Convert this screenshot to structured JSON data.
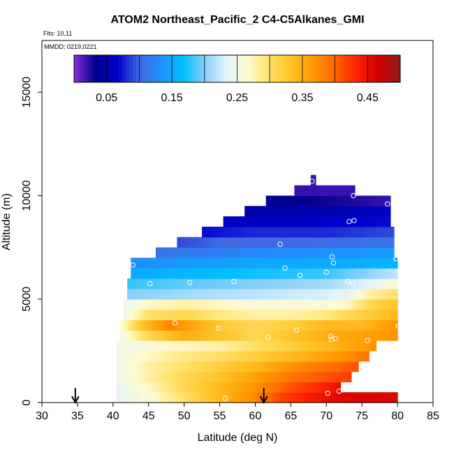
{
  "chart_data": {
    "type": "heatmap",
    "title": "ATOM2 Northeast_Pacific_2 C4-C5Alkanes_GMI",
    "flights_label": "Flts: 10,11",
    "dates_label": "MMDD: 0219,0221",
    "xlabel": "Latitude (deg N)",
    "ylabel": "Altitude (m)",
    "xlim": [
      30,
      85
    ],
    "ylim": [
      0,
      17500
    ],
    "x_ticks": [
      "30",
      "35",
      "40",
      "45",
      "50",
      "55",
      "60",
      "65",
      "70",
      "75",
      "80",
      "85"
    ],
    "y_ticks": [
      "0",
      "5000",
      "10000",
      "15000"
    ],
    "colorbar": {
      "range": [
        0,
        0.5
      ],
      "tick_labels": [
        "0.05",
        "0.15",
        "0.25",
        "0.35",
        "0.45"
      ],
      "tick_values": [
        0.05,
        0.15,
        0.25,
        0.35,
        0.45
      ],
      "colors": [
        "#8a2be2",
        "#00008b",
        "#0000cd",
        "#4169e1",
        "#1e90ff",
        "#00bfff",
        "#87cefa",
        "#e0f4ff",
        "#fffacd",
        "#ffe066",
        "#ffc125",
        "#ff9900",
        "#ff6600",
        "#ff2200",
        "#d00000",
        "#8b1a1a"
      ]
    },
    "flight_track_markers_lat": [
      34.7,
      61.2
    ],
    "bands": [
      {
        "alt": [
          0,
          500
        ],
        "lat": [
          40.5,
          80
        ],
        "stops": [
          [
            40.5,
            0.24
          ],
          [
            45,
            0.26
          ],
          [
            50,
            0.3
          ],
          [
            55,
            0.34
          ],
          [
            60,
            0.38
          ],
          [
            64,
            0.42
          ],
          [
            68,
            0.44
          ],
          [
            72,
            0.46
          ]
        ]
      },
      {
        "alt": [
          500,
          1000
        ],
        "lat": [
          40.5,
          72
        ],
        "stops": [
          [
            40.5,
            0.24
          ],
          [
            45,
            0.27
          ],
          [
            50,
            0.31
          ],
          [
            55,
            0.34
          ],
          [
            60,
            0.37
          ],
          [
            65,
            0.41
          ],
          [
            69,
            0.43
          ],
          [
            72,
            0.45
          ]
        ]
      },
      {
        "alt": [
          1000,
          1500
        ],
        "lat": [
          40.5,
          73.5
        ],
        "stops": [
          [
            40.5,
            0.25
          ],
          [
            45,
            0.28
          ],
          [
            50,
            0.31
          ],
          [
            55,
            0.33
          ],
          [
            60,
            0.36
          ],
          [
            65,
            0.39
          ],
          [
            70,
            0.41
          ],
          [
            73.5,
            0.42
          ]
        ]
      },
      {
        "alt": [
          1500,
          2000
        ],
        "lat": [
          40.5,
          74.5
        ],
        "stops": [
          [
            40.5,
            0.25
          ],
          [
            45,
            0.28
          ],
          [
            50,
            0.3
          ],
          [
            55,
            0.32
          ],
          [
            60,
            0.34
          ],
          [
            65,
            0.37
          ],
          [
            70,
            0.39
          ],
          [
            74.5,
            0.41
          ]
        ]
      },
      {
        "alt": [
          2000,
          2500
        ],
        "lat": [
          40.5,
          76
        ],
        "stops": [
          [
            40.5,
            0.25
          ],
          [
            45,
            0.27
          ],
          [
            50,
            0.29
          ],
          [
            55,
            0.3
          ],
          [
            60,
            0.32
          ],
          [
            65,
            0.34
          ],
          [
            70,
            0.36
          ],
          [
            76,
            0.39
          ]
        ]
      },
      {
        "alt": [
          2500,
          3000
        ],
        "lat": [
          40.5,
          77
        ],
        "stops": [
          [
            40.5,
            0.25
          ],
          [
            45,
            0.26
          ],
          [
            50,
            0.27
          ],
          [
            55,
            0.28
          ],
          [
            60,
            0.3
          ],
          [
            65,
            0.32
          ],
          [
            70,
            0.34
          ],
          [
            77,
            0.37
          ]
        ]
      },
      {
        "alt": [
          3000,
          3500
        ],
        "lat": [
          41,
          80
        ],
        "stops": [
          [
            41,
            0.25
          ],
          [
            45,
            0.31
          ],
          [
            50,
            0.35
          ],
          [
            55,
            0.33
          ],
          [
            60,
            0.31
          ],
          [
            65,
            0.33
          ],
          [
            70,
            0.35
          ],
          [
            75,
            0.36
          ],
          [
            80,
            0.37
          ]
        ]
      },
      {
        "alt": [
          3500,
          4000
        ],
        "lat": [
          41,
          80
        ],
        "stops": [
          [
            41,
            0.26
          ],
          [
            44,
            0.33
          ],
          [
            48,
            0.38
          ],
          [
            52,
            0.35
          ],
          [
            56,
            0.32
          ],
          [
            60,
            0.31
          ],
          [
            65,
            0.32
          ],
          [
            70,
            0.34
          ],
          [
            75,
            0.34
          ],
          [
            80,
            0.37
          ]
        ]
      },
      {
        "alt": [
          4000,
          4500
        ],
        "lat": [
          41.5,
          80
        ],
        "stops": [
          [
            41.5,
            0.25
          ],
          [
            45,
            0.3
          ],
          [
            50,
            0.31
          ],
          [
            55,
            0.29
          ],
          [
            60,
            0.28
          ],
          [
            65,
            0.28
          ],
          [
            70,
            0.29
          ],
          [
            75,
            0.32
          ],
          [
            80,
            0.34
          ]
        ]
      },
      {
        "alt": [
          4500,
          5000
        ],
        "lat": [
          41.5,
          80
        ],
        "stops": [
          [
            41.5,
            0.24
          ],
          [
            45,
            0.27
          ],
          [
            50,
            0.28
          ],
          [
            55,
            0.27
          ],
          [
            60,
            0.26
          ],
          [
            65,
            0.26
          ],
          [
            70,
            0.26
          ],
          [
            73,
            0.27
          ],
          [
            76,
            0.31
          ],
          [
            80,
            0.33
          ]
        ]
      },
      {
        "alt": [
          5000,
          5500
        ],
        "lat": [
          42,
          80
        ],
        "stops": [
          [
            42,
            0.2
          ],
          [
            50,
            0.21
          ],
          [
            60,
            0.22
          ],
          [
            70,
            0.23
          ],
          [
            73,
            0.24
          ],
          [
            76,
            0.28
          ],
          [
            80,
            0.3
          ]
        ]
      },
      {
        "alt": [
          5500,
          6000
        ],
        "lat": [
          42,
          80
        ],
        "stops": [
          [
            42,
            0.18
          ],
          [
            50,
            0.19
          ],
          [
            60,
            0.2
          ],
          [
            70,
            0.21
          ],
          [
            75,
            0.23
          ],
          [
            80,
            0.26
          ]
        ]
      },
      {
        "alt": [
          6000,
          6500
        ],
        "lat": [
          42.5,
          80
        ],
        "stops": [
          [
            42.5,
            0.15
          ],
          [
            50,
            0.16
          ],
          [
            60,
            0.17
          ],
          [
            70,
            0.18
          ],
          [
            75,
            0.2
          ],
          [
            80,
            0.22
          ]
        ]
      },
      {
        "alt": [
          6500,
          7000
        ],
        "lat": [
          42.5,
          80
        ],
        "stops": [
          [
            42.5,
            0.13
          ],
          [
            50,
            0.14
          ],
          [
            60,
            0.15
          ],
          [
            70,
            0.15
          ],
          [
            80,
            0.16
          ]
        ]
      },
      {
        "alt": [
          7000,
          7500
        ],
        "lat": [
          46,
          79.5
        ],
        "stops": [
          [
            46,
            0.11
          ],
          [
            55,
            0.12
          ],
          [
            65,
            0.13
          ],
          [
            79.5,
            0.14
          ]
        ]
      },
      {
        "alt": [
          7500,
          8000
        ],
        "lat": [
          49,
          79.5
        ],
        "stops": [
          [
            49,
            0.09
          ],
          [
            55,
            0.1
          ],
          [
            65,
            0.1
          ],
          [
            79.5,
            0.11
          ]
        ]
      },
      {
        "alt": [
          8000,
          8500
        ],
        "lat": [
          52.5,
          79.5
        ],
        "stops": [
          [
            52.5,
            0.07
          ],
          [
            60,
            0.08
          ],
          [
            70,
            0.08
          ],
          [
            79.5,
            0.09
          ]
        ]
      },
      {
        "alt": [
          8500,
          9000
        ],
        "lat": [
          55.5,
          79
        ],
        "stops": [
          [
            55.5,
            0.06
          ],
          [
            65,
            0.06
          ],
          [
            79,
            0.07
          ]
        ]
      },
      {
        "alt": [
          9000,
          9500
        ],
        "lat": [
          58.5,
          79
        ],
        "stops": [
          [
            58.5,
            0.05
          ],
          [
            68,
            0.05
          ],
          [
            79,
            0.06
          ]
        ]
      },
      {
        "alt": [
          9500,
          10000
        ],
        "lat": [
          61.5,
          79
        ],
        "stops": [
          [
            61.5,
            0.04
          ],
          [
            70,
            0.03
          ],
          [
            79,
            0.02
          ]
        ]
      },
      {
        "alt": [
          10000,
          10500
        ],
        "lat": [
          65.5,
          74
        ],
        "stops": [
          [
            65.5,
            0.02
          ],
          [
            70,
            0.02
          ],
          [
            74,
            0.02
          ]
        ]
      },
      {
        "alt": [
          10500,
          11000
        ],
        "lat": [
          67.8,
          68.5
        ],
        "stops": [
          [
            67.8,
            0.02
          ],
          [
            68.5,
            0.02
          ]
        ]
      }
    ],
    "observations": [
      {
        "lat": 42.8,
        "alt": 6650
      },
      {
        "lat": 45.2,
        "alt": 5750
      },
      {
        "lat": 50.8,
        "alt": 5800
      },
      {
        "lat": 57.0,
        "alt": 5850
      },
      {
        "lat": 48.7,
        "alt": 3850
      },
      {
        "lat": 54.8,
        "alt": 3600
      },
      {
        "lat": 61.8,
        "alt": 3150
      },
      {
        "lat": 63.5,
        "alt": 7650
      },
      {
        "lat": 64.2,
        "alt": 6500
      },
      {
        "lat": 66.3,
        "alt": 6150
      },
      {
        "lat": 70.0,
        "alt": 6300
      },
      {
        "lat": 70.8,
        "alt": 7050
      },
      {
        "lat": 71.0,
        "alt": 6750
      },
      {
        "lat": 73.0,
        "alt": 5850
      },
      {
        "lat": 73.7,
        "alt": 5750
      },
      {
        "lat": 70.7,
        "alt": 4600
      },
      {
        "lat": 70.6,
        "alt": 3200
      },
      {
        "lat": 70.7,
        "alt": 3050
      },
      {
        "lat": 71.3,
        "alt": 3100
      },
      {
        "lat": 65.8,
        "alt": 3500
      },
      {
        "lat": 75.8,
        "alt": 3000
      },
      {
        "lat": 80.1,
        "alt": 3700
      },
      {
        "lat": 79.8,
        "alt": 6950
      },
      {
        "lat": 73.2,
        "alt": 8750
      },
      {
        "lat": 73.9,
        "alt": 8800
      },
      {
        "lat": 73.8,
        "alt": 10000
      },
      {
        "lat": 68.0,
        "alt": 10700
      },
      {
        "lat": 78.6,
        "alt": 9600
      },
      {
        "lat": 44.1,
        "alt": 200
      },
      {
        "lat": 55.8,
        "alt": 200
      },
      {
        "lat": 70.2,
        "alt": 450
      },
      {
        "lat": 71.8,
        "alt": 550
      }
    ]
  }
}
